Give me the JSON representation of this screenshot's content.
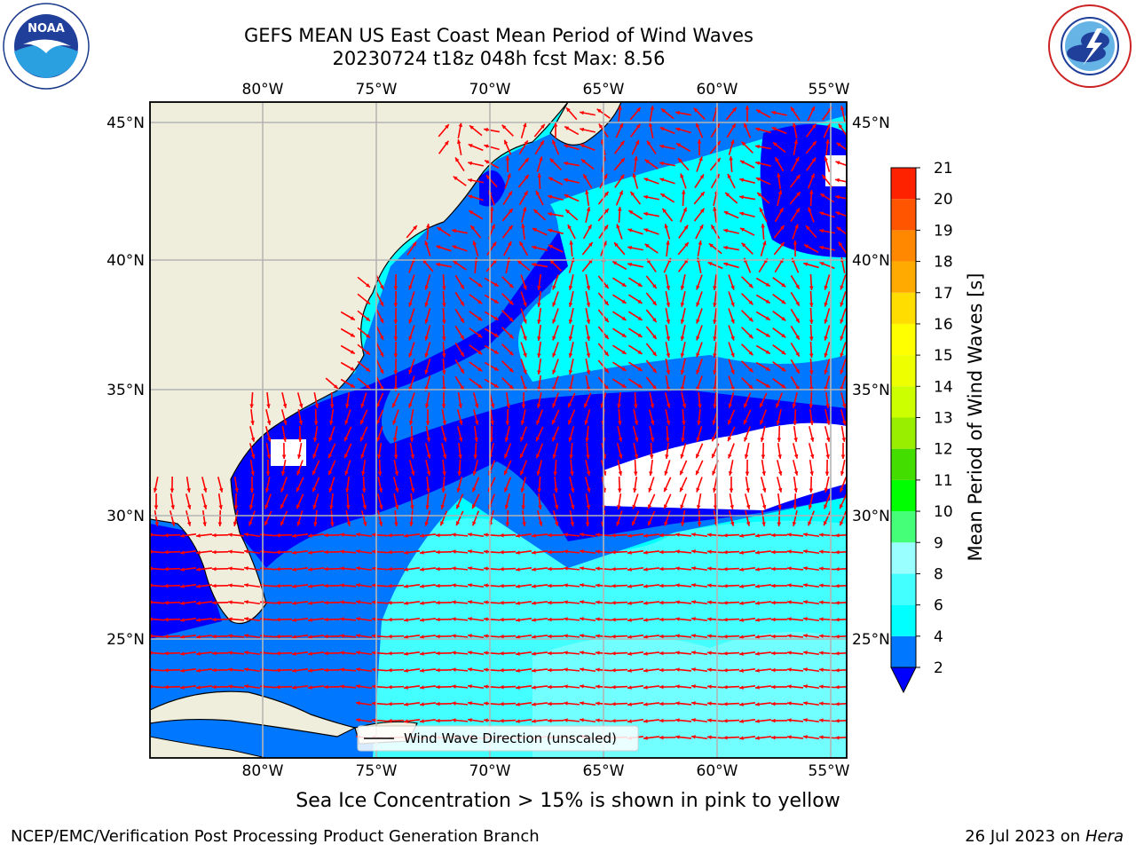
{
  "header": {
    "title_line1": "GEFS MEAN US East Coast Mean Period of Wind Waves",
    "title_line2": "20230724 t18z 048h fcst   Max: 8.56"
  },
  "logos": {
    "left": {
      "text": "NOAA",
      "ring_top": "NATIONAL OCEANIC AND ATMOSPHERIC ADMINISTRATION",
      "ring_bottom": "U.S. DEPARTMENT OF COMMERCE",
      "icon": "noaa-logo-icon"
    },
    "right": {
      "ring": "NATIONAL WEATHER SERVICE",
      "icon": "nws-logo-icon"
    }
  },
  "map": {
    "lon_labels": [
      "80°W",
      "75°W",
      "70°W",
      "65°W",
      "60°W",
      "55°W"
    ],
    "lat_labels": [
      "45°N",
      "40°N",
      "35°N",
      "30°N",
      "25°N"
    ],
    "legend_text": "Wind Wave Direction (unscaled)",
    "arrow_color": "#ff0000",
    "land_color": "#efeedc",
    "missing_color": "#ffffff"
  },
  "colorbar": {
    "title": "Mean Period of Wind Waves [s]",
    "ticks": [
      "2",
      "4",
      "6",
      "8",
      "9",
      "10",
      "11",
      "12",
      "13",
      "14",
      "15",
      "16",
      "17",
      "18",
      "19",
      "20",
      "21"
    ],
    "colors": [
      "#0000ff",
      "#0077ff",
      "#00ffff",
      "#44ffff",
      "#99ffff",
      "#44ff77",
      "#00ff00",
      "#44dd00",
      "#99ee00",
      "#ccff00",
      "#eeff00",
      "#ffff00",
      "#ffdd00",
      "#ffaa00",
      "#ff8800",
      "#ff5500",
      "#ff2200",
      "#ff0000"
    ]
  },
  "subtitle": "Sea Ice Concentration > 15% is shown in pink to yellow",
  "footer": {
    "left": "NCEP/EMC/Verification Post Processing Product Generation Branch",
    "right_prefix": "26 Jul 2023 on ",
    "right_machine": "Hera"
  }
}
